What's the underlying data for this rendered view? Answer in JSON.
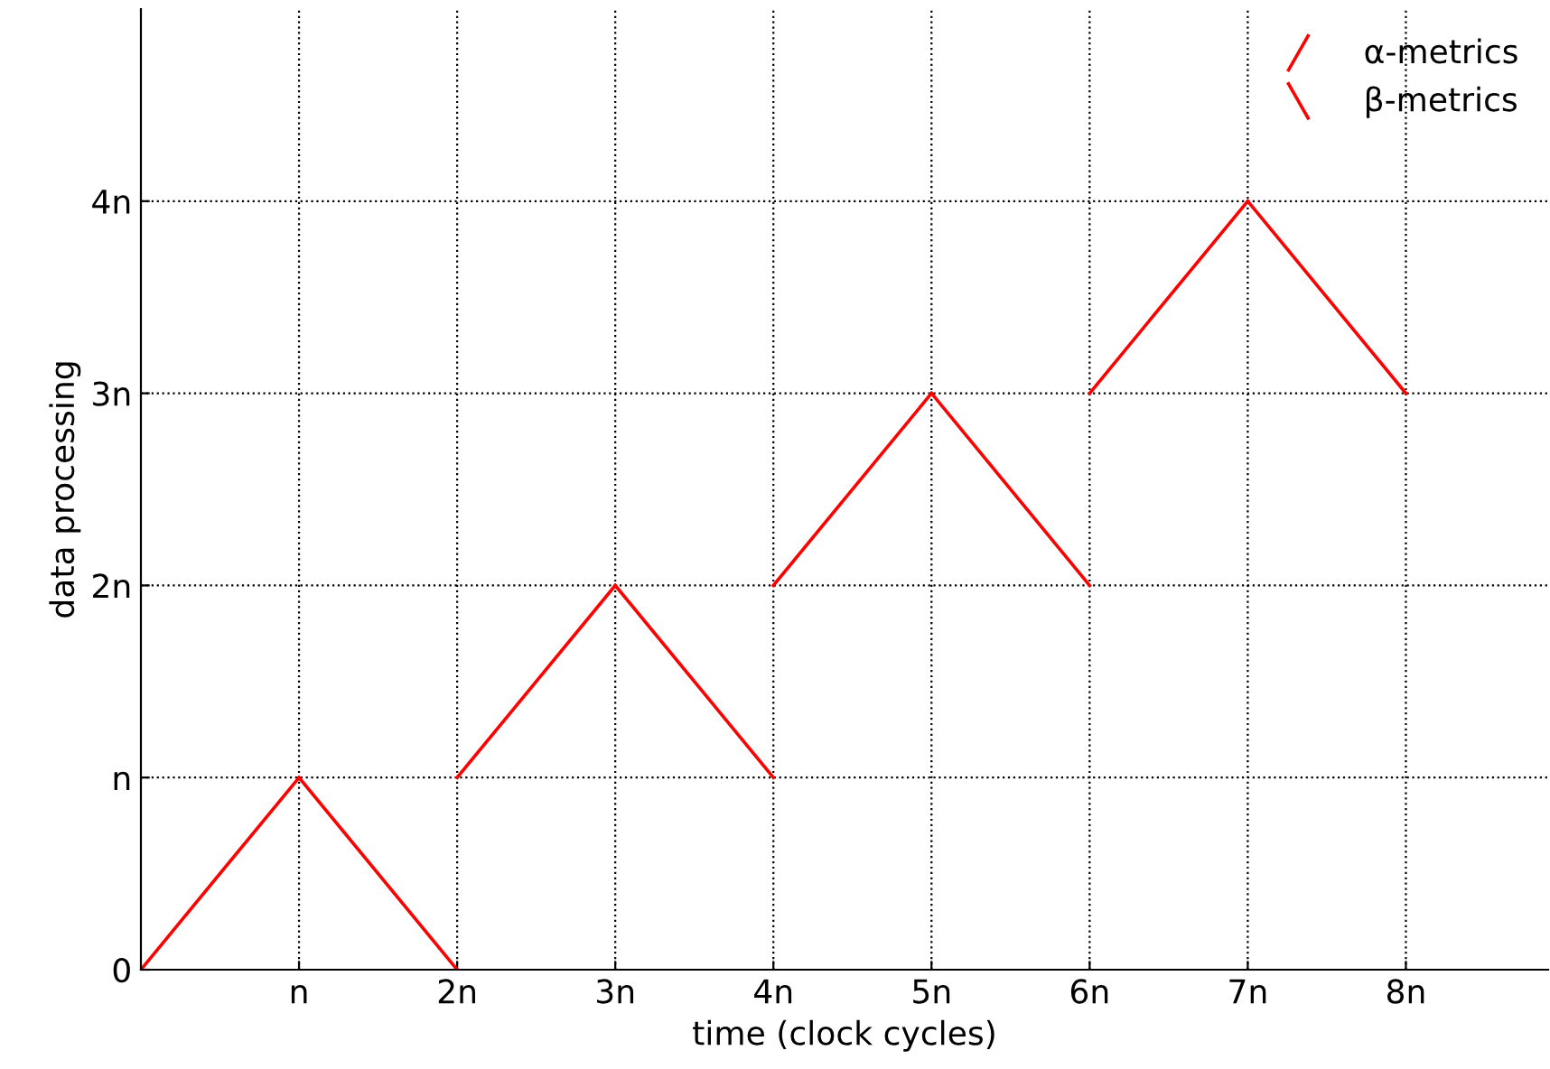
{
  "chart_data": {
    "type": "line",
    "xlabel": "time (clock cycles)",
    "ylabel": "data processing",
    "series": [
      {
        "name": "α-metrics",
        "color": "#ff0000",
        "x": [
          0,
          1
        ],
        "values": [
          0,
          1
        ]
      },
      {
        "name": "β-metrics",
        "color": "#ff0000",
        "x": [
          1,
          2
        ],
        "values": [
          1,
          0
        ]
      },
      {
        "color": "#ff0000",
        "x": [
          2,
          3
        ],
        "values": [
          1,
          2
        ]
      },
      {
        "color": "#ff0000",
        "x": [
          3,
          4
        ],
        "values": [
          2,
          1
        ]
      },
      {
        "color": "#ff0000",
        "x": [
          4,
          5
        ],
        "values": [
          2,
          3
        ]
      },
      {
        "color": "#ff0000",
        "x": [
          5,
          6
        ],
        "values": [
          3,
          2
        ]
      },
      {
        "color": "#ff0000",
        "x": [
          6,
          7
        ],
        "values": [
          3,
          4
        ]
      },
      {
        "color": "#ff0000",
        "x": [
          7,
          8
        ],
        "values": [
          4,
          3
        ]
      }
    ],
    "xlim": [
      0,
      8.9
    ],
    "ylim": [
      0,
      5
    ],
    "xticks": [
      {
        "value": 1,
        "label": "n"
      },
      {
        "value": 2,
        "label": "2n"
      },
      {
        "value": 3,
        "label": "3n"
      },
      {
        "value": 4,
        "label": "4n"
      },
      {
        "value": 5,
        "label": "5n"
      },
      {
        "value": 6,
        "label": "6n"
      },
      {
        "value": 7,
        "label": "7n"
      },
      {
        "value": 8,
        "label": "8n"
      }
    ],
    "yticks": [
      0,
      {
        "value": 1,
        "label": "n"
      },
      {
        "value": 2,
        "label": "2n"
      },
      {
        "value": 3,
        "label": "3n"
      },
      {
        "value": 4,
        "label": "4n"
      }
    ],
    "grid": true,
    "legend": "top right",
    "marker": "none",
    "line_style": "solid"
  }
}
